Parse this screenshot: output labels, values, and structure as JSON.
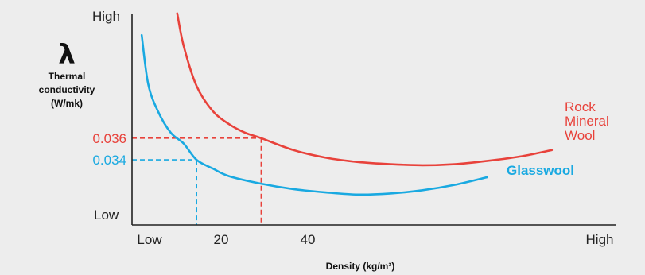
{
  "chart_data": {
    "type": "line",
    "title": "",
    "y_axis": {
      "symbol": "λ",
      "label_lines": [
        "Thermal",
        "conductivity",
        "(W/mk)"
      ],
      "low_label": "Low",
      "high_label": "High",
      "marked_values": [
        {
          "value": "0.036",
          "color": "#e8423b"
        },
        {
          "value": "0.034",
          "color": "#19a9e1"
        }
      ]
    },
    "x_axis": {
      "label": "Density (kg/m³)",
      "ticks": [
        "Low",
        "20",
        "40",
        "High"
      ]
    },
    "series": [
      {
        "name": "Rock Mineral Wool",
        "label_lines": [
          "Rock",
          "Mineral",
          "Wool"
        ],
        "color": "#e8423b",
        "points": [
          [
            14,
            0.0475
          ],
          [
            16,
            0.0445
          ],
          [
            20,
            0.0408
          ],
          [
            25,
            0.0385
          ],
          [
            30,
            0.0373
          ],
          [
            35,
            0.0365
          ],
          [
            40,
            0.036
          ],
          [
            50,
            0.0349
          ],
          [
            60,
            0.0342
          ],
          [
            70,
            0.0338
          ],
          [
            80,
            0.0336
          ],
          [
            90,
            0.0335
          ],
          [
            100,
            0.0336
          ],
          [
            110,
            0.0339
          ],
          [
            120,
            0.0343
          ],
          [
            130,
            0.0349
          ]
        ]
      },
      {
        "name": "Glasswool",
        "label_lines": [
          "Glasswool"
        ],
        "color": "#19a9e1",
        "points": [
          [
            3,
            0.0455
          ],
          [
            5,
            0.041
          ],
          [
            8,
            0.0385
          ],
          [
            12,
            0.0365
          ],
          [
            16,
            0.0355
          ],
          [
            20,
            0.034
          ],
          [
            25,
            0.0332
          ],
          [
            30,
            0.0325
          ],
          [
            40,
            0.0318
          ],
          [
            50,
            0.0313
          ],
          [
            60,
            0.031
          ],
          [
            70,
            0.0308
          ],
          [
            80,
            0.0309
          ],
          [
            90,
            0.0312
          ],
          [
            100,
            0.0317
          ],
          [
            110,
            0.0324
          ]
        ]
      }
    ],
    "reference_lines": [
      {
        "x": 20,
        "y": 0.034,
        "color": "#19a9e1"
      },
      {
        "x": 40,
        "y": 0.036,
        "color": "#e8423b"
      }
    ],
    "xlim": [
      0,
      150
    ],
    "ylim": [
      0.028,
      0.048
    ],
    "grid": false,
    "legend": "inline"
  }
}
